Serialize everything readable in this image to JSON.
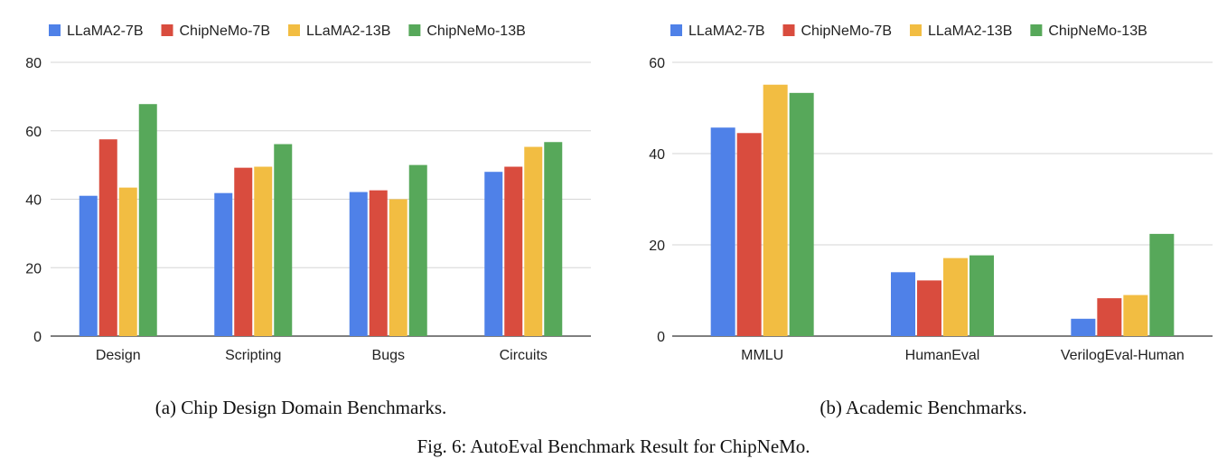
{
  "colors": {
    "LLaMA2-7B": "#4f81e8",
    "ChipNeMo-7B": "#d94c3e",
    "LLaMA2-13B": "#f2bd42",
    "ChipNeMo-13B": "#57a85a",
    "grid": "#d6d6d6",
    "axis": "#333333"
  },
  "chart_data": [
    {
      "type": "bar",
      "caption": "(a) Chip Design Domain Benchmarks.",
      "categories": [
        "Design",
        "Scripting",
        "Bugs",
        "Circuits"
      ],
      "series": [
        {
          "name": "LLaMA2-7B",
          "values": [
            41,
            41.8,
            42.1,
            48
          ]
        },
        {
          "name": "ChipNeMo-7B",
          "values": [
            57.5,
            49.2,
            42.6,
            49.5
          ]
        },
        {
          "name": "LLaMA2-13B",
          "values": [
            43.4,
            49.5,
            40,
            55.3
          ]
        },
        {
          "name": "ChipNeMo-13B",
          "values": [
            67.8,
            56.1,
            50,
            56.7
          ]
        }
      ],
      "yticks": [
        0,
        20,
        40,
        60,
        80
      ],
      "ylim": [
        0,
        80
      ],
      "legend": "top-left"
    },
    {
      "type": "bar",
      "caption": "(b) Academic Benchmarks.",
      "categories": [
        "MMLU",
        "HumanEval",
        "VerilogEval-Human"
      ],
      "series": [
        {
          "name": "LLaMA2-7B",
          "values": [
            45.7,
            14,
            3.8
          ]
        },
        {
          "name": "ChipNeMo-7B",
          "values": [
            44.5,
            12.2,
            8.3
          ]
        },
        {
          "name": "LLaMA2-13B",
          "values": [
            55.1,
            17.1,
            9
          ]
        },
        {
          "name": "ChipNeMo-13B",
          "values": [
            53.3,
            17.7,
            22.4
          ]
        }
      ],
      "yticks": [
        0,
        20,
        40,
        60
      ],
      "ylim": [
        0,
        60
      ],
      "legend": "top-left"
    }
  ],
  "figure_caption": "Fig. 6: AutoEval Benchmark Result for ChipNeMo."
}
